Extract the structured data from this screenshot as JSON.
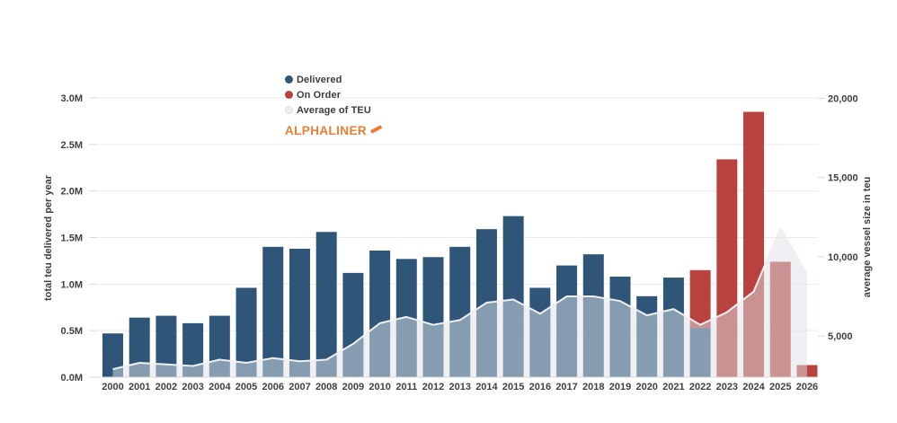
{
  "branding": {
    "logo_text": "ALPHALINER"
  },
  "chart_data": {
    "type": "bar",
    "subtype": "stacked bars (left axis) + overlay area (right axis)",
    "categories": [
      "2000",
      "2001",
      "2002",
      "2003",
      "2004",
      "2005",
      "2006",
      "2007",
      "2008",
      "2009",
      "2010",
      "2011",
      "2012",
      "2013",
      "2014",
      "2015",
      "2016",
      "2017",
      "2018",
      "2019",
      "2020",
      "2021",
      "2022",
      "2023",
      "2024",
      "2025",
      "2026"
    ],
    "series": [
      {
        "name": "Delivered",
        "type": "bar",
        "axis": "left",
        "unit": "M teu",
        "color": "#2F5678",
        "values": [
          0.47,
          0.64,
          0.66,
          0.58,
          0.66,
          0.96,
          1.4,
          1.38,
          1.56,
          1.12,
          1.36,
          1.27,
          1.29,
          1.4,
          1.59,
          1.73,
          0.96,
          1.2,
          1.32,
          1.08,
          0.87,
          1.07,
          0.53,
          0,
          0,
          0,
          0
        ]
      },
      {
        "name": "On Order",
        "type": "bar",
        "axis": "left",
        "unit": "M teu",
        "color": "#B9423E",
        "stacked_on": "Delivered",
        "values": [
          0,
          0,
          0,
          0,
          0,
          0,
          0,
          0,
          0,
          0,
          0,
          0,
          0,
          0,
          0,
          0,
          0,
          0,
          0,
          0,
          0,
          0,
          0.62,
          2.34,
          2.85,
          1.24,
          0.13
        ]
      },
      {
        "name": "Average of TEU",
        "type": "area",
        "axis": "right",
        "unit": "teu",
        "color": "#EFEFEF",
        "fill": "rgba(222,226,231,0.5)",
        "values": [
          2900,
          3300,
          3200,
          3100,
          3500,
          3300,
          3600,
          3400,
          3500,
          4500,
          5800,
          6200,
          5700,
          6000,
          7100,
          7300,
          6400,
          7500,
          7500,
          7200,
          6300,
          6700,
          5700,
          6500,
          7800,
          11800,
          8900
        ]
      }
    ],
    "left_axis": {
      "title": "total teu delivered per year",
      "tick_labels": [
        "0.0M",
        "0.5M",
        "1.0M",
        "1.5M",
        "2.0M",
        "2.5M",
        "3.0M"
      ],
      "tick_values": [
        0,
        0.5,
        1,
        1.5,
        2,
        2.5,
        3
      ],
      "range": [
        0,
        3
      ]
    },
    "right_axis": {
      "title": "average vessel size in teu",
      "tick_labels": [
        "5,000",
        "10,000",
        "15,000",
        "20,000"
      ],
      "tick_values": [
        5000,
        10000,
        15000,
        20000
      ]
    },
    "grid": "horizontal gridlines at left-axis ticks",
    "legend_position": "top-left-of-plot"
  }
}
